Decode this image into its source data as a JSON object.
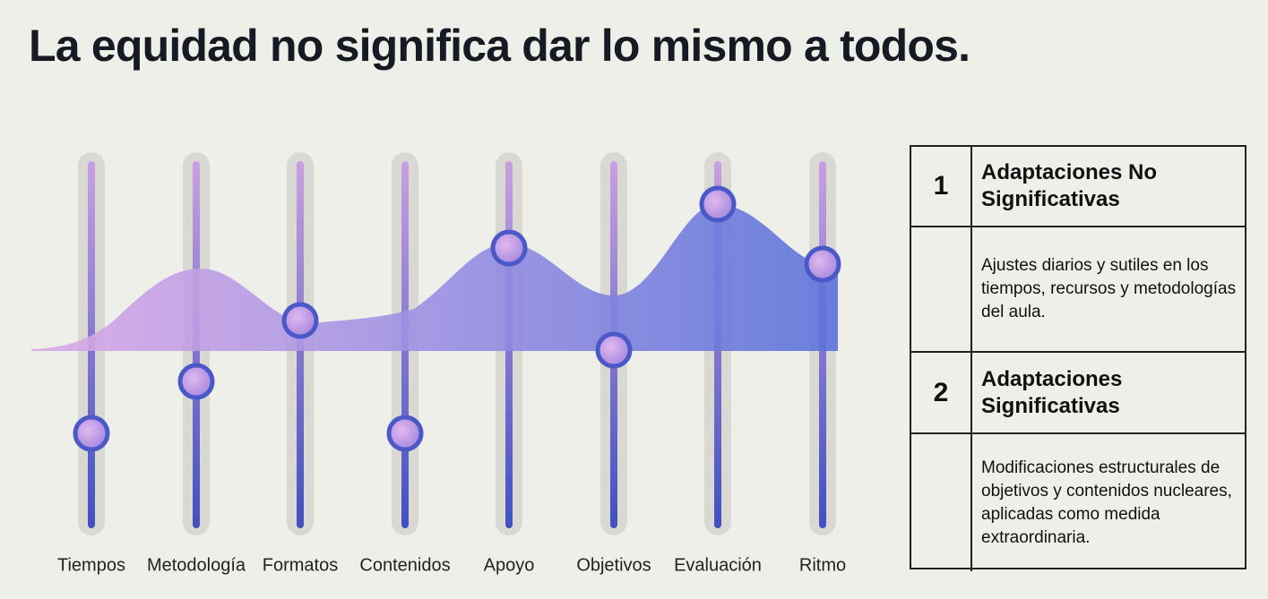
{
  "title": "La equidad no significa dar lo mismo a todos.",
  "sliders": [
    "Tiempos",
    "Metodología",
    "Formatos",
    "Contenidos",
    "Apoyo",
    "Objetivos",
    "Evaluación",
    "Ritmo"
  ],
  "table": {
    "rows": [
      {
        "number": "1",
        "heading": "Adaptaciones No Significativas",
        "description": "Ajustes diarios y sutiles en los tiempos, recursos y metodologías del aula."
      },
      {
        "number": "2",
        "heading": "Adaptaciones Significativas",
        "description": "Modificaciones estructurales de objetivos y contenidos nucleares, aplicadas como medida extraordinaria."
      }
    ]
  }
}
